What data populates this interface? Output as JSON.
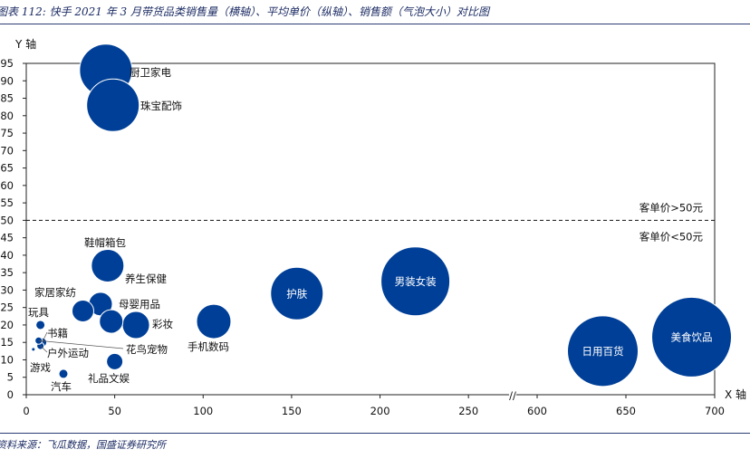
{
  "title": "图表 112: 快手 2021 年 3 月带货品类销售量（横轴）、平均单价（纵轴）、销售额（气泡大小）对比图",
  "source": "资料来源：飞瓜数据，国盛证券研究所",
  "colors": {
    "bubble": "#003f97",
    "axis": "#222222",
    "bars": "#2c3e75"
  },
  "chart_data": {
    "type": "scatter",
    "subtype": "bubble",
    "xlabel": "X 轴",
    "ylabel": "Y 轴",
    "ylim": [
      0,
      95
    ],
    "yticks": [
      0,
      5,
      10,
      15,
      20,
      25,
      30,
      35,
      40,
      45,
      50,
      55,
      60,
      65,
      70,
      75,
      80,
      85,
      90,
      95
    ],
    "xticks": [
      0,
      50,
      100,
      150,
      200,
      250,
      600,
      650,
      700
    ],
    "x_axis_break": "//",
    "reference_line": {
      "y": 50,
      "style": "dashed",
      "label_above": "客单价>50元",
      "label_below": "客单价<50元"
    },
    "points": [
      {
        "name": "厨卫家电",
        "x": 45,
        "y": 93,
        "size": 29,
        "label_inside": false
      },
      {
        "name": "珠宝配饰",
        "x": 49,
        "y": 83,
        "size": 29,
        "label_inside": false
      },
      {
        "name": "鞋帽箱包",
        "x": 46,
        "y": 37,
        "size": 18,
        "label_inside": false
      },
      {
        "name": "养生保健",
        "x": 42,
        "y": 26,
        "size": 13,
        "label_inside": false
      },
      {
        "name": "家居家纺",
        "x": 32,
        "y": 24,
        "size": 12,
        "label_inside": false
      },
      {
        "name": "母婴用品",
        "x": 48,
        "y": 21,
        "size": 13,
        "label_inside": false
      },
      {
        "name": "彩妆",
        "x": 62,
        "y": 20,
        "size": 15,
        "label_inside": false
      },
      {
        "name": "手机数码",
        "x": 106,
        "y": 21,
        "size": 19,
        "label_inside": false
      },
      {
        "name": "护肤",
        "x": 153,
        "y": 29,
        "size": 29,
        "label_inside": true
      },
      {
        "name": "男装女装",
        "x": 220,
        "y": 32.5,
        "size": 38,
        "label_inside": true
      },
      {
        "name": "日用百货",
        "x": 637,
        "y": 12.5,
        "size": 39,
        "label_inside": true
      },
      {
        "name": "美食饮品",
        "x": 687,
        "y": 16.5,
        "size": 44,
        "label_inside": true
      },
      {
        "name": "玩具",
        "x": 8,
        "y": 20,
        "size": 5,
        "label_inside": false
      },
      {
        "name": "书籍",
        "x": 9,
        "y": 15,
        "size": 5,
        "label_inside": false
      },
      {
        "name": "户外运动",
        "x": 8,
        "y": 14,
        "size": 4,
        "label_inside": false
      },
      {
        "name": "花鸟宠物",
        "x": 7,
        "y": 15.5,
        "size": 4,
        "label_inside": false
      },
      {
        "name": "游戏",
        "x": 4,
        "y": 13,
        "size": 2,
        "label_inside": false
      },
      {
        "name": "礼品文娱",
        "x": 50,
        "y": 9.5,
        "size": 9,
        "label_inside": false
      },
      {
        "name": "汽车",
        "x": 21,
        "y": 6,
        "size": 5,
        "label_inside": false
      }
    ]
  }
}
